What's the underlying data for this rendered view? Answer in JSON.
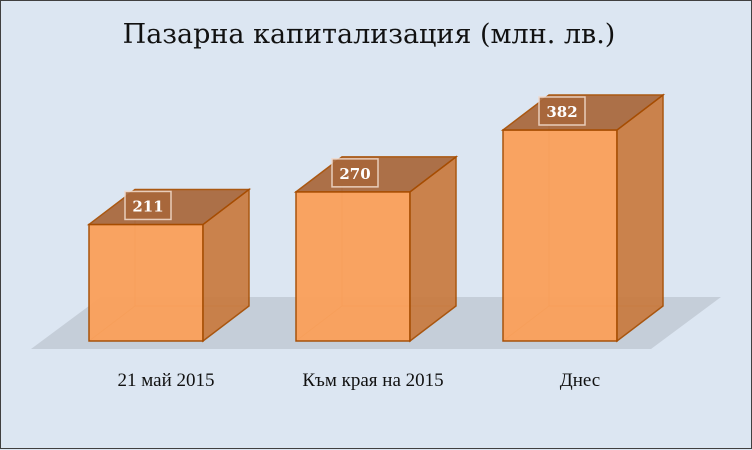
{
  "chart_data": {
    "type": "bar",
    "style": "3d-box",
    "title": "Пазарна капитализация  (млн. лв.)",
    "categories": [
      "21 май 2015",
      "Към края на 2015",
      "Днес"
    ],
    "values": [
      211,
      270,
      382
    ],
    "data_labels": [
      "211",
      "270",
      "382"
    ],
    "xlabel": "",
    "ylabel": "",
    "ylim": [
      0,
      382
    ],
    "grid": false,
    "legend": "none",
    "colors": {
      "bar_front": "#fba05a",
      "bar_side": "#c97a3e",
      "bar_top": "#a8673a",
      "edge": "#a64c00",
      "floor": "#c5ced9",
      "background": "#dce6f2"
    }
  }
}
